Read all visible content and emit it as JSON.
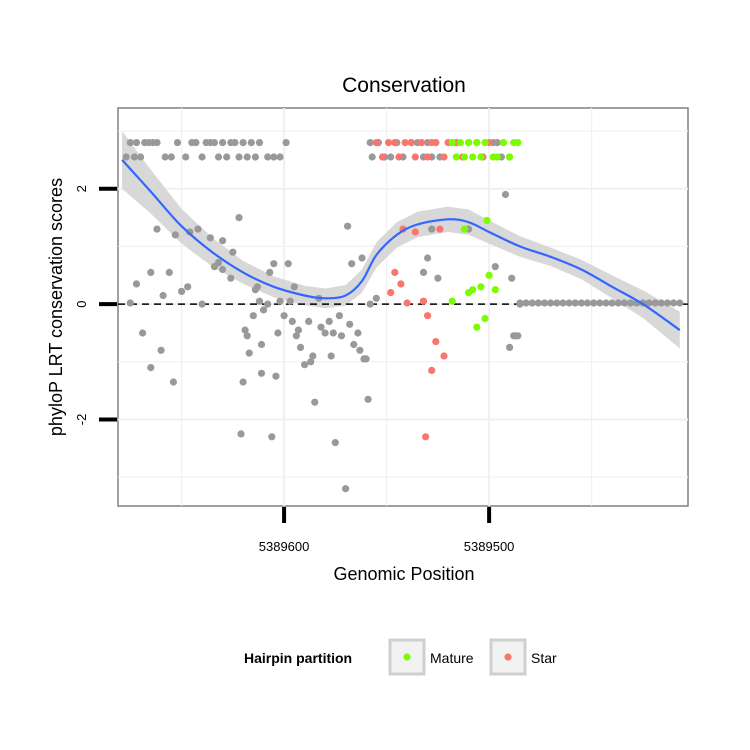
{
  "chart_data": {
    "type": "scatter",
    "title": "Conservation",
    "xlabel": "Genomic Position",
    "ylabel": "phyloP LRT conservation scores",
    "x_reversed": true,
    "xlim": [
      5389681,
      5389403
    ],
    "ylim": [
      -3.5,
      3.4
    ],
    "x_ticks": [
      5389600,
      5389500
    ],
    "x_tick_labels": [
      "5389600",
      "5389500"
    ],
    "y_ticks": [
      -2,
      0,
      2
    ],
    "y_tick_labels": [
      "-2",
      "0",
      "2"
    ],
    "reference_line": {
      "y": 0,
      "style": "dashed"
    },
    "legend": {
      "title": "Hairpin partition",
      "position": "bottom",
      "entries": [
        {
          "label": "Mature",
          "color": "#7cfc00"
        },
        {
          "label": "Star",
          "color": "#f8766d"
        }
      ]
    },
    "colors": {
      "other": "#999999",
      "mature": "#7cfc00",
      "star": "#f8766d",
      "smooth": "#3366ff",
      "band": "#d4d4d4"
    },
    "series": [
      {
        "name": "Other",
        "points": [
          [
            5389677,
            2.55
          ],
          [
            5389675,
            2.8
          ],
          [
            5389673,
            2.55
          ],
          [
            5389672,
            2.8
          ],
          [
            5389670,
            2.55
          ],
          [
            5389668,
            2.8
          ],
          [
            5389666,
            2.8
          ],
          [
            5389664,
            2.8
          ],
          [
            5389662,
            2.8
          ],
          [
            5389658,
            2.55
          ],
          [
            5389655,
            2.55
          ],
          [
            5389652,
            2.8
          ],
          [
            5389648,
            2.55
          ],
          [
            5389645,
            2.8
          ],
          [
            5389643,
            2.8
          ],
          [
            5389640,
            2.55
          ],
          [
            5389638,
            2.8
          ],
          [
            5389636,
            2.8
          ],
          [
            5389634,
            2.8
          ],
          [
            5389632,
            2.55
          ],
          [
            5389630,
            2.8
          ],
          [
            5389628,
            2.55
          ],
          [
            5389626,
            2.8
          ],
          [
            5389624,
            2.8
          ],
          [
            5389622,
            2.55
          ],
          [
            5389620,
            2.8
          ],
          [
            5389618,
            2.55
          ],
          [
            5389616,
            2.8
          ],
          [
            5389614,
            2.55
          ],
          [
            5389612,
            2.8
          ],
          [
            5389608,
            2.55
          ],
          [
            5389605,
            2.55
          ],
          [
            5389602,
            2.55
          ],
          [
            5389599,
            2.8
          ],
          [
            5389558,
            2.8
          ],
          [
            5389557,
            2.55
          ],
          [
            5389554,
            2.8
          ],
          [
            5389551,
            2.55
          ],
          [
            5389548,
            2.55
          ],
          [
            5389545,
            2.8
          ],
          [
            5389542,
            2.55
          ],
          [
            5389538,
            2.8
          ],
          [
            5389535,
            2.8
          ],
          [
            5389532,
            2.55
          ],
          [
            5389530,
            2.8
          ],
          [
            5389528,
            2.55
          ],
          [
            5389526,
            2.8
          ],
          [
            5389524,
            2.55
          ],
          [
            5389498,
            2.8
          ],
          [
            5389496,
            2.8
          ],
          [
            5389494,
            2.55
          ],
          [
            5389490,
            2.55
          ],
          [
            5389675,
            0.02
          ],
          [
            5389672,
            0.35
          ],
          [
            5389669,
            -0.5
          ],
          [
            5389665,
            -1.1
          ],
          [
            5389665,
            0.55
          ],
          [
            5389662,
            1.3
          ],
          [
            5389660,
            -0.8
          ],
          [
            5389659,
            0.15
          ],
          [
            5389656,
            0.55
          ],
          [
            5389654,
            -1.35
          ],
          [
            5389653,
            1.2
          ],
          [
            5389650,
            0.22
          ],
          [
            5389647,
            0.3
          ],
          [
            5389646,
            1.25
          ],
          [
            5389642,
            1.3
          ],
          [
            5389640,
            0.0
          ],
          [
            5389636,
            1.15
          ],
          [
            5389634,
            0.65
          ],
          [
            5389632,
            0.72
          ],
          [
            5389630,
            0.6
          ],
          [
            5389630,
            1.1
          ],
          [
            5389626,
            0.45
          ],
          [
            5389625,
            0.9
          ],
          [
            5389622,
            1.5
          ],
          [
            5389621,
            -2.25
          ],
          [
            5389620,
            -1.35
          ],
          [
            5389619,
            -0.45
          ],
          [
            5389618,
            -0.55
          ],
          [
            5389617,
            -0.85
          ],
          [
            5389615,
            -0.2
          ],
          [
            5389614,
            0.25
          ],
          [
            5389613,
            0.3
          ],
          [
            5389612,
            0.05
          ],
          [
            5389611,
            -1.2
          ],
          [
            5389611,
            -0.7
          ],
          [
            5389610,
            -0.1
          ],
          [
            5389608,
            0.0
          ],
          [
            5389607,
            0.55
          ],
          [
            5389606,
            -2.3
          ],
          [
            5389605,
            0.7
          ],
          [
            5389604,
            -1.25
          ],
          [
            5389603,
            -0.5
          ],
          [
            5389602,
            0.05
          ],
          [
            5389600,
            -0.2
          ],
          [
            5389598,
            0.7
          ],
          [
            5389597,
            0.05
          ],
          [
            5389596,
            -0.3
          ],
          [
            5389595,
            0.3
          ],
          [
            5389594,
            -0.55
          ],
          [
            5389593,
            -0.45
          ],
          [
            5389592,
            -0.75
          ],
          [
            5389590,
            -1.05
          ],
          [
            5389588,
            -0.3
          ],
          [
            5389587,
            -1.0
          ],
          [
            5389586,
            -0.9
          ],
          [
            5389585,
            -1.7
          ],
          [
            5389583,
            0.1
          ],
          [
            5389582,
            -0.4
          ],
          [
            5389580,
            -0.5
          ],
          [
            5389578,
            -0.3
          ],
          [
            5389577,
            -0.9
          ],
          [
            5389576,
            -0.5
          ],
          [
            5389575,
            -2.4
          ],
          [
            5389573,
            -0.2
          ],
          [
            5389572,
            -0.55
          ],
          [
            5389570,
            -3.2
          ],
          [
            5389569,
            1.35
          ],
          [
            5389568,
            -0.35
          ],
          [
            5389567,
            0.7
          ],
          [
            5389566,
            -0.7
          ],
          [
            5389564,
            -0.5
          ],
          [
            5389563,
            -0.8
          ],
          [
            5389562,
            0.8
          ],
          [
            5389561,
            -0.95
          ],
          [
            5389560,
            -0.95
          ],
          [
            5389559,
            -1.65
          ],
          [
            5389558,
            0.0
          ],
          [
            5389555,
            0.1
          ],
          [
            5389532,
            0.55
          ],
          [
            5389530,
            0.8
          ],
          [
            5389528,
            1.3
          ],
          [
            5389525,
            0.45
          ],
          [
            5389510,
            1.3
          ],
          [
            5389497,
            0.65
          ],
          [
            5389492,
            1.9
          ],
          [
            5389490,
            -0.75
          ],
          [
            5389489,
            0.45
          ],
          [
            5389488,
            -0.55
          ],
          [
            5389487,
            -0.55
          ],
          [
            5389486,
            -0.55
          ],
          [
            5389485,
            0.0
          ],
          [
            5389485,
            0.02
          ],
          [
            5389482,
            0.02
          ],
          [
            5389479,
            0.02
          ],
          [
            5389476,
            0.02
          ],
          [
            5389473,
            0.02
          ],
          [
            5389470,
            0.02
          ],
          [
            5389467,
            0.02
          ],
          [
            5389464,
            0.02
          ],
          [
            5389461,
            0.02
          ],
          [
            5389458,
            0.02
          ],
          [
            5389455,
            0.02
          ],
          [
            5389452,
            0.02
          ],
          [
            5389449,
            0.02
          ],
          [
            5389446,
            0.02
          ],
          [
            5389443,
            0.02
          ],
          [
            5389440,
            0.02
          ],
          [
            5389437,
            0.02
          ],
          [
            5389434,
            0.02
          ],
          [
            5389431,
            0.02
          ],
          [
            5389428,
            0.02
          ],
          [
            5389425,
            0.02
          ],
          [
            5389422,
            0.02
          ],
          [
            5389419,
            0.02
          ],
          [
            5389416,
            0.02
          ],
          [
            5389413,
            0.02
          ],
          [
            5389410,
            0.02
          ],
          [
            5389407,
            0.02
          ]
        ]
      },
      {
        "name": "Star",
        "points": [
          [
            5389555,
            2.8
          ],
          [
            5389552,
            2.55
          ],
          [
            5389549,
            2.8
          ],
          [
            5389546,
            2.8
          ],
          [
            5389544,
            2.55
          ],
          [
            5389541,
            2.8
          ],
          [
            5389538,
            2.8
          ],
          [
            5389536,
            2.55
          ],
          [
            5389533,
            2.8
          ],
          [
            5389530,
            2.55
          ],
          [
            5389528,
            2.8
          ],
          [
            5389526,
            2.8
          ],
          [
            5389522,
            2.55
          ],
          [
            5389520,
            2.8
          ],
          [
            5389516,
            2.8
          ],
          [
            5389513,
            2.55
          ],
          [
            5389510,
            2.8
          ],
          [
            5389506,
            2.8
          ],
          [
            5389503,
            2.55
          ],
          [
            5389500,
            2.8
          ],
          [
            5389548,
            0.2
          ],
          [
            5389546,
            0.55
          ],
          [
            5389543,
            0.35
          ],
          [
            5389542,
            1.3
          ],
          [
            5389540,
            0.02
          ],
          [
            5389536,
            1.25
          ],
          [
            5389532,
            0.05
          ],
          [
            5389531,
            -2.3
          ],
          [
            5389530,
            -0.2
          ],
          [
            5389528,
            -1.15
          ],
          [
            5389526,
            -0.65
          ],
          [
            5389524,
            1.3
          ],
          [
            5389522,
            -0.9
          ]
        ]
      },
      {
        "name": "Mature",
        "points": [
          [
            5389518,
            2.8
          ],
          [
            5389516,
            2.55
          ],
          [
            5389514,
            2.8
          ],
          [
            5389512,
            2.55
          ],
          [
            5389510,
            2.8
          ],
          [
            5389508,
            2.55
          ],
          [
            5389506,
            2.8
          ],
          [
            5389504,
            2.55
          ],
          [
            5389502,
            2.8
          ],
          [
            5389498,
            2.55
          ],
          [
            5389496,
            2.55
          ],
          [
            5389493,
            2.8
          ],
          [
            5389490,
            2.55
          ],
          [
            5389488,
            2.8
          ],
          [
            5389486,
            2.8
          ],
          [
            5389518,
            0.05
          ],
          [
            5389512,
            1.3
          ],
          [
            5389510,
            0.2
          ],
          [
            5389508,
            0.25
          ],
          [
            5389506,
            -0.4
          ],
          [
            5389504,
            0.3
          ],
          [
            5389502,
            -0.25
          ],
          [
            5389501,
            1.45
          ],
          [
            5389500,
            0.5
          ],
          [
            5389497,
            0.25
          ]
        ]
      }
    ],
    "smooth": {
      "x": [
        5389679,
        5389665,
        5389650,
        5389635,
        5389620,
        5389605,
        5389590,
        5389580,
        5389570,
        5389562,
        5389555,
        5389545,
        5389535,
        5389520,
        5389510,
        5389500,
        5389485,
        5389470,
        5389455,
        5389440,
        5389425,
        5389407
      ],
      "y": [
        2.5,
        1.95,
        1.35,
        0.9,
        0.55,
        0.3,
        0.15,
        0.1,
        0.15,
        0.4,
        0.85,
        1.2,
        1.38,
        1.47,
        1.42,
        1.25,
        1.0,
        0.82,
        0.6,
        0.3,
        0.0,
        -0.45
      ],
      "se": [
        0.5,
        0.38,
        0.3,
        0.25,
        0.2,
        0.18,
        0.17,
        0.17,
        0.18,
        0.2,
        0.22,
        0.22,
        0.22,
        0.22,
        0.22,
        0.2,
        0.18,
        0.16,
        0.17,
        0.2,
        0.24,
        0.32
      ]
    }
  }
}
